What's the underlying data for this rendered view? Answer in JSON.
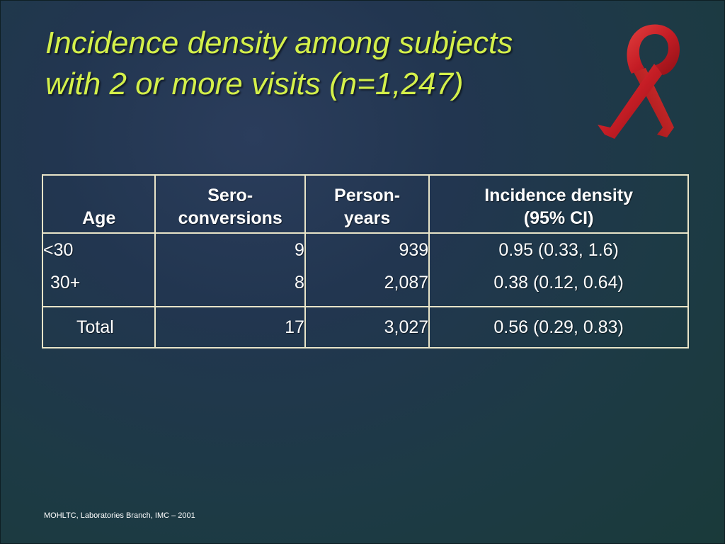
{
  "title": {
    "line1": "Incidence density among subjects",
    "line2": "with 2 or more visits (n=1,247)"
  },
  "table": {
    "headers": {
      "age": [
        "",
        "Age"
      ],
      "seroconversions": [
        "Sero-",
        "conversions"
      ],
      "person_years": [
        "Person-",
        "years"
      ],
      "incidence": [
        "Incidence density",
        "(95% CI)"
      ]
    },
    "rows": [
      {
        "age": "<30",
        "seroconversions": "9",
        "person_years": "939",
        "incidence": "0.95  (0.33, 1.6)"
      },
      {
        "age": "30+",
        "seroconversions": "8",
        "person_years": "2,087",
        "incidence": "0.38  (0.12, 0.64)"
      }
    ],
    "total": {
      "age": "Total",
      "seroconversions": "17",
      "person_years": "3,027",
      "incidence": "0.56  (0.29, 0.83)"
    }
  },
  "footer": "MOHLTC, Laboratories Branch, IMC – 2001",
  "icons": {
    "ribbon": "red-awareness-ribbon-icon"
  },
  "colors": {
    "title": "#d4f04a",
    "ribbon": "#c8202a",
    "table_border": "#e8e4c8"
  }
}
